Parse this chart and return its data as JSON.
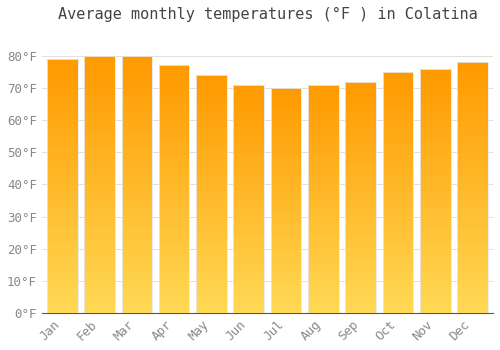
{
  "title": "Average monthly temperatures (°F ) in Colatina",
  "months": [
    "Jan",
    "Feb",
    "Mar",
    "Apr",
    "May",
    "Jun",
    "Jul",
    "Aug",
    "Sep",
    "Oct",
    "Nov",
    "Dec"
  ],
  "values": [
    79,
    80,
    80,
    77,
    74,
    71,
    70,
    71,
    72,
    75,
    76,
    78
  ],
  "bar_color_bottom": "#FFD040",
  "bar_color_top": "#FFA000",
  "bar_edge_color": "#E8E8E8",
  "background_color": "#FFFFFF",
  "grid_color": "#E0E0E0",
  "ytick_step": 10,
  "ylim": [
    0,
    88
  ],
  "title_fontsize": 11,
  "tick_fontsize": 9,
  "tick_color": "#888888",
  "title_color": "#444444"
}
